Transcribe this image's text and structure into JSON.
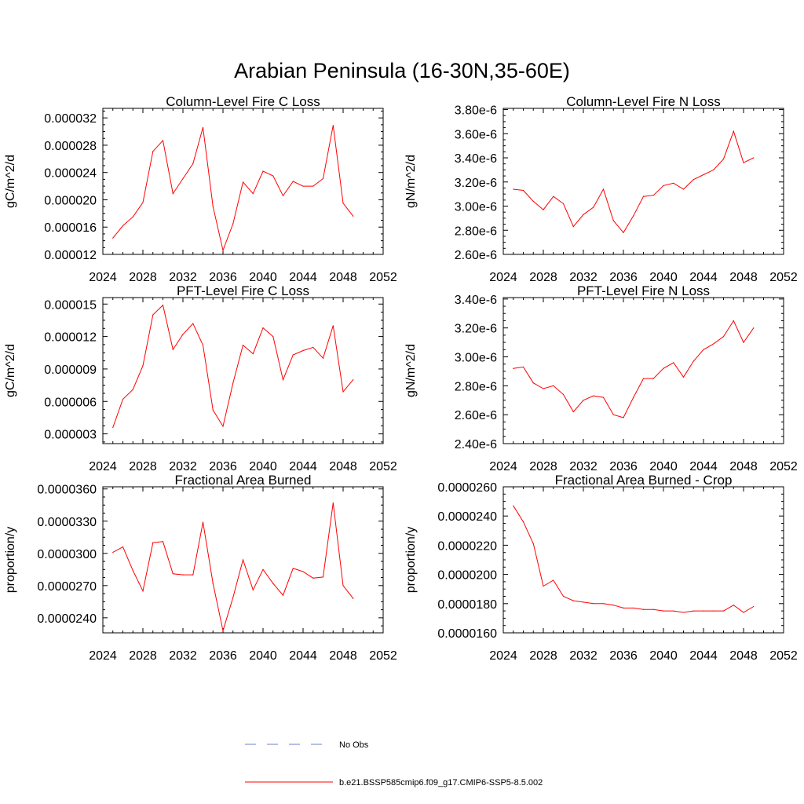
{
  "title": "Arabian Peninsula (16-30N,35-60E)",
  "legend": {
    "items": [
      {
        "label": "No Obs",
        "color": "#6f7fc8",
        "dash": true
      },
      {
        "label": "b.e21.BSSP585cmip6.f09_g17.CMIP6-SSP5-8.5.002",
        "color": "#ff0000",
        "dash": false
      }
    ]
  },
  "chart_data": [
    {
      "type": "line",
      "title": "Column-Level Fire C Loss",
      "ylabel": "gC/m^2/d",
      "xlim": [
        2024,
        2052
      ],
      "xticks": [
        2024,
        2028,
        2032,
        2036,
        2040,
        2044,
        2048,
        2052
      ],
      "ylim": [
        1.2e-05,
        3.34e-05
      ],
      "yticks": [
        1.2e-05,
        1.6e-05,
        2e-05,
        2.4e-05,
        2.8e-05,
        3.2e-05
      ],
      "ytick_labels": [
        "0.000012",
        "0.000016",
        "0.000020",
        "0.000024",
        "0.000028",
        "0.000032"
      ],
      "x": [
        2025,
        2026,
        2027,
        2028,
        2029,
        2030,
        2031,
        2032,
        2033,
        2034,
        2035,
        2036,
        2037,
        2038,
        2039,
        2040,
        2041,
        2042,
        2043,
        2044,
        2045,
        2046,
        2047,
        2048,
        2049
      ],
      "series": [
        {
          "name": "b.e21.BSSP585cmip6.f09_g17.CMIP6-SSP5-8.5.002",
          "color": "#ff0000",
          "values": [
            1.44e-05,
            1.62e-05,
            1.75e-05,
            1.96e-05,
            2.71e-05,
            2.87e-05,
            2.09e-05,
            2.31e-05,
            2.53e-05,
            3.06e-05,
            1.9e-05,
            1.26e-05,
            1.65e-05,
            2.26e-05,
            2.09e-05,
            2.42e-05,
            2.35e-05,
            2.06e-05,
            2.27e-05,
            2.2e-05,
            2.2e-05,
            2.31e-05,
            3.09e-05,
            1.95e-05,
            1.76e-05
          ]
        }
      ]
    },
    {
      "type": "line",
      "title": "Column-Level Fire N Loss",
      "ylabel": "gN/m^2/d",
      "xlim": [
        2024,
        2052
      ],
      "xticks": [
        2024,
        2028,
        2032,
        2036,
        2040,
        2044,
        2048,
        2052
      ],
      "ylim": [
        2.6e-06,
        3.81e-06
      ],
      "yticks": [
        2.6e-06,
        2.8e-06,
        3e-06,
        3.2e-06,
        3.4e-06,
        3.6e-06,
        3.8e-06
      ],
      "ytick_labels": [
        "2.60e-6",
        "2.80e-6",
        "3.00e-6",
        "3.20e-6",
        "3.40e-6",
        "3.60e-6",
        "3.80e-6"
      ],
      "x": [
        2025,
        2026,
        2027,
        2028,
        2029,
        2030,
        2031,
        2032,
        2033,
        2034,
        2035,
        2036,
        2037,
        2038,
        2039,
        2040,
        2041,
        2042,
        2043,
        2044,
        2045,
        2046,
        2047,
        2048,
        2049
      ],
      "series": [
        {
          "name": "b.e21.BSSP585cmip6.f09_g17.CMIP6-SSP5-8.5.002",
          "color": "#ff0000",
          "values": [
            3.14e-06,
            3.13e-06,
            3.04e-06,
            2.97e-06,
            3.08e-06,
            3.02e-06,
            2.83e-06,
            2.93e-06,
            2.99e-06,
            3.14e-06,
            2.88e-06,
            2.78e-06,
            2.92e-06,
            3.08e-06,
            3.09e-06,
            3.17e-06,
            3.19e-06,
            3.14e-06,
            3.22e-06,
            3.26e-06,
            3.3e-06,
            3.39e-06,
            3.62e-06,
            3.36e-06,
            3.4e-06
          ]
        }
      ]
    },
    {
      "type": "line",
      "title": "PFT-Level Fire C Loss",
      "ylabel": "gC/m^2/d",
      "xlim": [
        2024,
        2052
      ],
      "xticks": [
        2024,
        2028,
        2032,
        2036,
        2040,
        2044,
        2048,
        2052
      ],
      "ylim": [
        2.1e-06,
        1.56e-05
      ],
      "yticks": [
        3e-06,
        6e-06,
        9e-06,
        1.2e-05,
        1.5e-05
      ],
      "ytick_labels": [
        "0.000003",
        "0.000006",
        "0.000009",
        "0.000012",
        "0.000015"
      ],
      "x": [
        2025,
        2026,
        2027,
        2028,
        2029,
        2030,
        2031,
        2032,
        2033,
        2034,
        2035,
        2036,
        2037,
        2038,
        2039,
        2040,
        2041,
        2042,
        2043,
        2044,
        2045,
        2046,
        2047,
        2048,
        2049
      ],
      "series": [
        {
          "name": "b.e21.BSSP585cmip6.f09_g17.CMIP6-SSP5-8.5.002",
          "color": "#ff0000",
          "values": [
            3.6e-06,
            6.2e-06,
            7.1e-06,
            9.3e-06,
            1.4e-05,
            1.49e-05,
            1.08e-05,
            1.22e-05,
            1.32e-05,
            1.12e-05,
            5.2e-06,
            3.7e-06,
            7.7e-06,
            1.12e-05,
            1.04e-05,
            1.28e-05,
            1.2e-05,
            8e-06,
            1.03e-05,
            1.07e-05,
            1.1e-05,
            1e-05,
            1.3e-05,
            6.9e-06,
            8e-06
          ]
        }
      ]
    },
    {
      "type": "line",
      "title": "PFT-Level Fire N Loss",
      "ylabel": "gN/m^2/d",
      "xlim": [
        2024,
        2052
      ],
      "xticks": [
        2024,
        2028,
        2032,
        2036,
        2040,
        2044,
        2048,
        2052
      ],
      "ylim": [
        2.4e-06,
        3.41e-06
      ],
      "yticks": [
        2.4e-06,
        2.6e-06,
        2.8e-06,
        3e-06,
        3.2e-06,
        3.4e-06
      ],
      "ytick_labels": [
        "2.40e-6",
        "2.60e-6",
        "2.80e-6",
        "3.00e-6",
        "3.20e-6",
        "3.40e-6"
      ],
      "x": [
        2025,
        2026,
        2027,
        2028,
        2029,
        2030,
        2031,
        2032,
        2033,
        2034,
        2035,
        2036,
        2037,
        2038,
        2039,
        2040,
        2041,
        2042,
        2043,
        2044,
        2045,
        2046,
        2047,
        2048,
        2049
      ],
      "series": [
        {
          "name": "b.e21.BSSP585cmip6.f09_g17.CMIP6-SSP5-8.5.002",
          "color": "#ff0000",
          "values": [
            2.92e-06,
            2.93e-06,
            2.82e-06,
            2.78e-06,
            2.8e-06,
            2.74e-06,
            2.62e-06,
            2.7e-06,
            2.73e-06,
            2.72e-06,
            2.6e-06,
            2.58e-06,
            2.72e-06,
            2.85e-06,
            2.85e-06,
            2.92e-06,
            2.96e-06,
            2.86e-06,
            2.97e-06,
            3.05e-06,
            3.09e-06,
            3.14e-06,
            3.25e-06,
            3.1e-06,
            3.2e-06
          ]
        }
      ]
    },
    {
      "type": "line",
      "title": "Fractional Area Burned",
      "ylabel": "proportion/y",
      "xlim": [
        2024,
        2052
      ],
      "xticks": [
        2024,
        2028,
        2032,
        2036,
        2040,
        2044,
        2048,
        2052
      ],
      "ylim": [
        2.26e-05,
        3.62e-05
      ],
      "yticks": [
        2.4e-05,
        2.7e-05,
        3e-05,
        3.3e-05,
        3.6e-05
      ],
      "ytick_labels": [
        "0.0000240",
        "0.0000270",
        "0.0000300",
        "0.0000330",
        "0.0000360"
      ],
      "x": [
        2025,
        2026,
        2027,
        2028,
        2029,
        2030,
        2031,
        2032,
        2033,
        2034,
        2035,
        2036,
        2037,
        2038,
        2039,
        2040,
        2041,
        2042,
        2043,
        2044,
        2045,
        2046,
        2047,
        2048,
        2049
      ],
      "series": [
        {
          "name": "b.e21.BSSP585cmip6.f09_g17.CMIP6-SSP5-8.5.002",
          "color": "#ff0000",
          "values": [
            3.01e-05,
            3.06e-05,
            2.84e-05,
            2.65e-05,
            3.1e-05,
            3.11e-05,
            2.81e-05,
            2.8e-05,
            2.8e-05,
            3.29e-05,
            2.72e-05,
            2.28e-05,
            2.59e-05,
            2.94e-05,
            2.66e-05,
            2.85e-05,
            2.72e-05,
            2.61e-05,
            2.86e-05,
            2.83e-05,
            2.77e-05,
            2.78e-05,
            3.47e-05,
            2.7e-05,
            2.58e-05
          ]
        }
      ]
    },
    {
      "type": "line",
      "title": "Fractional Area Burned - Crop",
      "ylabel": "proportion/y",
      "xlim": [
        2024,
        2052
      ],
      "xticks": [
        2024,
        2028,
        2032,
        2036,
        2040,
        2044,
        2048,
        2052
      ],
      "ylim": [
        1.6e-05,
        2.6e-05
      ],
      "yticks": [
        1.6e-05,
        1.8e-05,
        2e-05,
        2.2e-05,
        2.4e-05,
        2.6e-05
      ],
      "ytick_labels": [
        "0.0000160",
        "0.0000180",
        "0.0000200",
        "0.0000220",
        "0.0000240",
        "0.0000260"
      ],
      "x": [
        2025,
        2026,
        2027,
        2028,
        2029,
        2030,
        2031,
        2032,
        2033,
        2034,
        2035,
        2036,
        2037,
        2038,
        2039,
        2040,
        2041,
        2042,
        2043,
        2044,
        2045,
        2046,
        2047,
        2048,
        2049
      ],
      "series": [
        {
          "name": "b.e21.BSSP585cmip6.f09_g17.CMIP6-SSP5-8.5.002",
          "color": "#ff0000",
          "values": [
            2.47e-05,
            2.36e-05,
            2.21e-05,
            1.92e-05,
            1.96e-05,
            1.85e-05,
            1.82e-05,
            1.81e-05,
            1.8e-05,
            1.8e-05,
            1.79e-05,
            1.77e-05,
            1.77e-05,
            1.76e-05,
            1.76e-05,
            1.75e-05,
            1.75e-05,
            1.74e-05,
            1.75e-05,
            1.75e-05,
            1.75e-05,
            1.75e-05,
            1.79e-05,
            1.74e-05,
            1.78e-05
          ]
        }
      ]
    }
  ]
}
